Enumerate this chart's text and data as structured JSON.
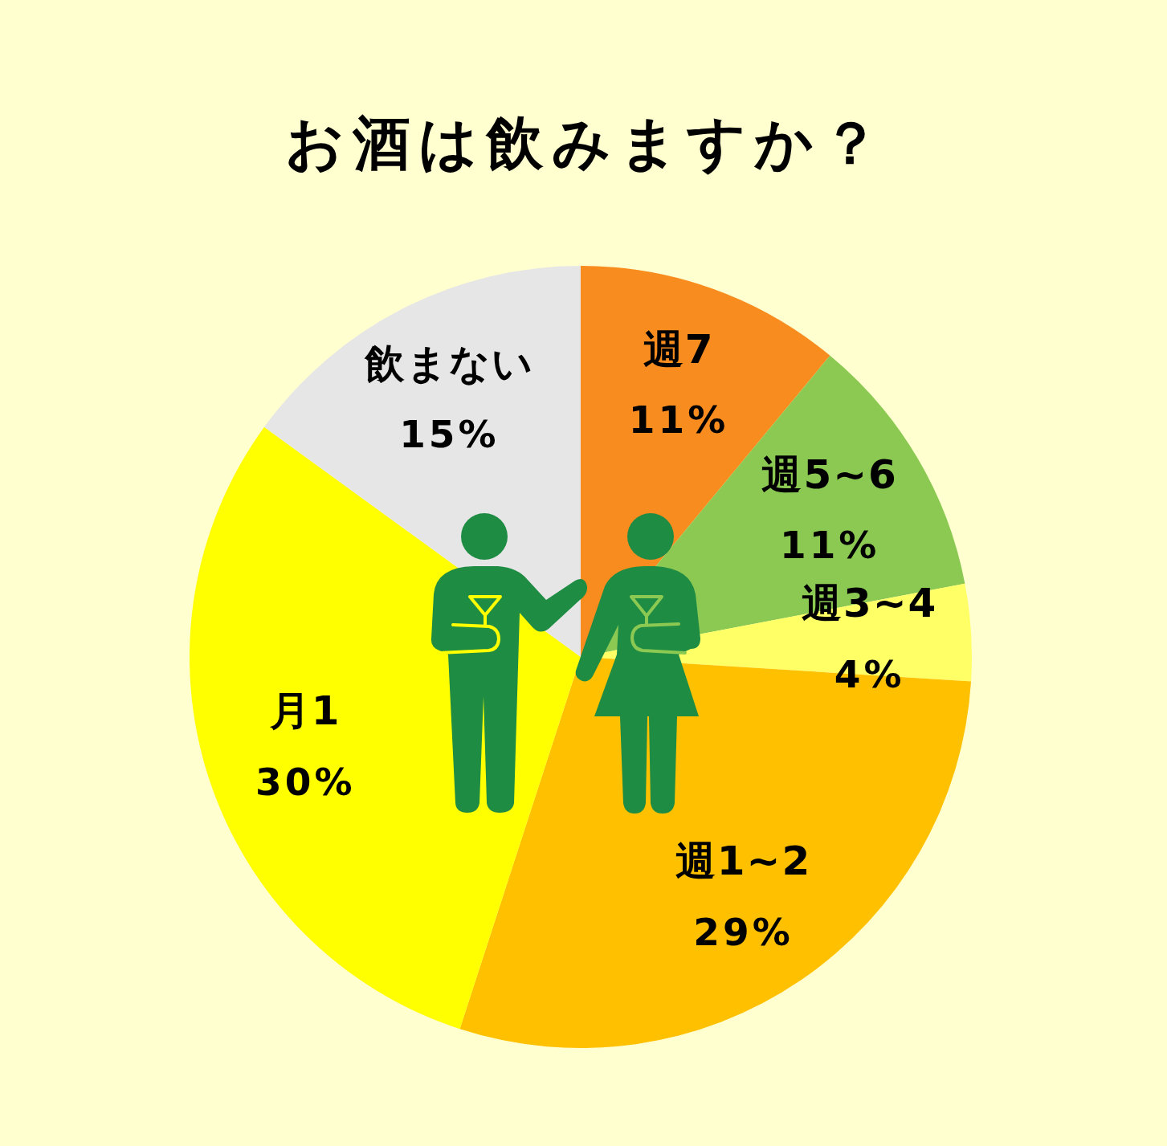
{
  "chart_data": {
    "type": "pie",
    "title": "お酒は飲みますか？",
    "categories": [
      "週7",
      "週5~6",
      "週3~4",
      "週1~2",
      "月1",
      "飲まない"
    ],
    "values": [
      11,
      11,
      4,
      29,
      30,
      15
    ],
    "colors": [
      "#f98c1f",
      "#8bc953",
      "#ffff66",
      "#ffc000",
      "#ffff00",
      "#e6e6e6"
    ],
    "value_labels": [
      "11%",
      "11%",
      "4%",
      "29%",
      "30%",
      "15%"
    ]
  }
}
